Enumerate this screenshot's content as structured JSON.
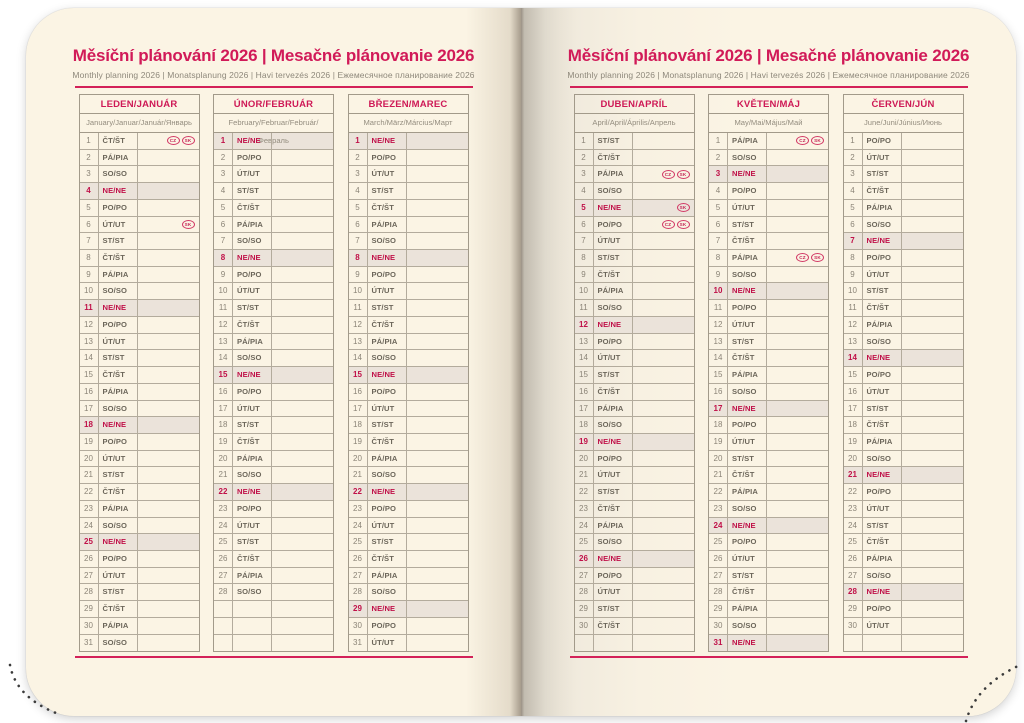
{
  "page_title": "Měsíční plánování 2026 | Mesačné plánovanie 2026",
  "page_subtitle": "Monthly planning 2026 | Monatsplanung 2026 | Havi tervezés 2026 | Ежемесячное планирование 2026",
  "colors": {
    "accent": "#ce1956",
    "title": "#d11a58",
    "rule": "#d32159",
    "sunday_text": "#c01048",
    "sunday_background": "#ebe3da",
    "paper": "#fbf4e4",
    "table_border": "#a29a8a"
  },
  "badge_labels": [
    "CZ",
    "SK"
  ],
  "rows_per_column": 31,
  "months": [
    {
      "title": "LEDEN/JANUÁR",
      "subtitle": "January/Januar/Január/Январь",
      "days": [
        {
          "d": 1,
          "w": "ČT/ŠT",
          "b": [
            "CZ",
            "SK"
          ]
        },
        {
          "d": 2,
          "w": "PÁ/PIA"
        },
        {
          "d": 3,
          "w": "SO/SO"
        },
        {
          "d": 4,
          "w": "NE/NE",
          "hl": true
        },
        {
          "d": 5,
          "w": "PO/PO"
        },
        {
          "d": 6,
          "w": "ÚT/UT",
          "b": [
            "SK"
          ]
        },
        {
          "d": 7,
          "w": "ST/ST"
        },
        {
          "d": 8,
          "w": "ČT/ŠT"
        },
        {
          "d": 9,
          "w": "PÁ/PIA"
        },
        {
          "d": 10,
          "w": "SO/SO"
        },
        {
          "d": 11,
          "w": "NE/NE",
          "hl": true
        },
        {
          "d": 12,
          "w": "PO/PO"
        },
        {
          "d": 13,
          "w": "ÚT/UT"
        },
        {
          "d": 14,
          "w": "ST/ST"
        },
        {
          "d": 15,
          "w": "ČT/ŠT"
        },
        {
          "d": 16,
          "w": "PÁ/PIA"
        },
        {
          "d": 17,
          "w": "SO/SO"
        },
        {
          "d": 18,
          "w": "NE/NE",
          "hl": true
        },
        {
          "d": 19,
          "w": "PO/PO"
        },
        {
          "d": 20,
          "w": "ÚT/UT"
        },
        {
          "d": 21,
          "w": "ST/ST"
        },
        {
          "d": 22,
          "w": "ČT/ŠT"
        },
        {
          "d": 23,
          "w": "PÁ/PIA"
        },
        {
          "d": 24,
          "w": "SO/SO"
        },
        {
          "d": 25,
          "w": "NE/NE",
          "hl": true
        },
        {
          "d": 26,
          "w": "PO/PO"
        },
        {
          "d": 27,
          "w": "ÚT/UT"
        },
        {
          "d": 28,
          "w": "ST/ST"
        },
        {
          "d": 29,
          "w": "ČT/ŠT"
        },
        {
          "d": 30,
          "w": "PÁ/PIA"
        },
        {
          "d": 31,
          "w": "SO/SO"
        }
      ]
    },
    {
      "title": "ÚNOR/FEBRUÁR",
      "subtitle": "February/Februar/Február/Февраль",
      "days": [
        {
          "d": 1,
          "w": "NE/NE",
          "hl": true
        },
        {
          "d": 2,
          "w": "PO/PO"
        },
        {
          "d": 3,
          "w": "ÚT/UT"
        },
        {
          "d": 4,
          "w": "ST/ST"
        },
        {
          "d": 5,
          "w": "ČT/ŠT"
        },
        {
          "d": 6,
          "w": "PÁ/PIA"
        },
        {
          "d": 7,
          "w": "SO/SO"
        },
        {
          "d": 8,
          "w": "NE/NE",
          "hl": true
        },
        {
          "d": 9,
          "w": "PO/PO"
        },
        {
          "d": 10,
          "w": "ÚT/UT"
        },
        {
          "d": 11,
          "w": "ST/ST"
        },
        {
          "d": 12,
          "w": "ČT/ŠT"
        },
        {
          "d": 13,
          "w": "PÁ/PIA"
        },
        {
          "d": 14,
          "w": "SO/SO"
        },
        {
          "d": 15,
          "w": "NE/NE",
          "hl": true
        },
        {
          "d": 16,
          "w": "PO/PO"
        },
        {
          "d": 17,
          "w": "ÚT/UT"
        },
        {
          "d": 18,
          "w": "ST/ST"
        },
        {
          "d": 19,
          "w": "ČT/ŠT"
        },
        {
          "d": 20,
          "w": "PÁ/PIA"
        },
        {
          "d": 21,
          "w": "SO/SO"
        },
        {
          "d": 22,
          "w": "NE/NE",
          "hl": true
        },
        {
          "d": 23,
          "w": "PO/PO"
        },
        {
          "d": 24,
          "w": "ÚT/UT"
        },
        {
          "d": 25,
          "w": "ST/ST"
        },
        {
          "d": 26,
          "w": "ČT/ŠT"
        },
        {
          "d": 27,
          "w": "PÁ/PIA"
        },
        {
          "d": 28,
          "w": "SO/SO"
        }
      ]
    },
    {
      "title": "BŘEZEN/MAREC",
      "subtitle": "March/März/Március/Март",
      "days": [
        {
          "d": 1,
          "w": "NE/NE",
          "hl": true
        },
        {
          "d": 2,
          "w": "PO/PO"
        },
        {
          "d": 3,
          "w": "ÚT/UT"
        },
        {
          "d": 4,
          "w": "ST/ST"
        },
        {
          "d": 5,
          "w": "ČT/ŠT"
        },
        {
          "d": 6,
          "w": "PÁ/PIA"
        },
        {
          "d": 7,
          "w": "SO/SO"
        },
        {
          "d": 8,
          "w": "NE/NE",
          "hl": true
        },
        {
          "d": 9,
          "w": "PO/PO"
        },
        {
          "d": 10,
          "w": "ÚT/UT"
        },
        {
          "d": 11,
          "w": "ST/ST"
        },
        {
          "d": 12,
          "w": "ČT/ŠT"
        },
        {
          "d": 13,
          "w": "PÁ/PIA"
        },
        {
          "d": 14,
          "w": "SO/SO"
        },
        {
          "d": 15,
          "w": "NE/NE",
          "hl": true
        },
        {
          "d": 16,
          "w": "PO/PO"
        },
        {
          "d": 17,
          "w": "ÚT/UT"
        },
        {
          "d": 18,
          "w": "ST/ST"
        },
        {
          "d": 19,
          "w": "ČT/ŠT"
        },
        {
          "d": 20,
          "w": "PÁ/PIA"
        },
        {
          "d": 21,
          "w": "SO/SO"
        },
        {
          "d": 22,
          "w": "NE/NE",
          "hl": true
        },
        {
          "d": 23,
          "w": "PO/PO"
        },
        {
          "d": 24,
          "w": "ÚT/UT"
        },
        {
          "d": 25,
          "w": "ST/ST"
        },
        {
          "d": 26,
          "w": "ČT/ŠT"
        },
        {
          "d": 27,
          "w": "PÁ/PIA"
        },
        {
          "d": 28,
          "w": "SO/SO"
        },
        {
          "d": 29,
          "w": "NE/NE",
          "hl": true
        },
        {
          "d": 30,
          "w": "PO/PO"
        },
        {
          "d": 31,
          "w": "ÚT/UT"
        }
      ]
    },
    {
      "title": "DUBEN/APRÍL",
      "subtitle": "April/April/Április/Апрель",
      "days": [
        {
          "d": 1,
          "w": "ST/ST"
        },
        {
          "d": 2,
          "w": "ČT/ŠT"
        },
        {
          "d": 3,
          "w": "PÁ/PIA",
          "b": [
            "CZ",
            "SK"
          ]
        },
        {
          "d": 4,
          "w": "SO/SO"
        },
        {
          "d": 5,
          "w": "NE/NE",
          "hl": true,
          "b": [
            "SK"
          ]
        },
        {
          "d": 6,
          "w": "PO/PO",
          "b": [
            "CZ",
            "SK"
          ]
        },
        {
          "d": 7,
          "w": "ÚT/UT"
        },
        {
          "d": 8,
          "w": "ST/ST"
        },
        {
          "d": 9,
          "w": "ČT/ŠT"
        },
        {
          "d": 10,
          "w": "PÁ/PIA"
        },
        {
          "d": 11,
          "w": "SO/SO"
        },
        {
          "d": 12,
          "w": "NE/NE",
          "hl": true
        },
        {
          "d": 13,
          "w": "PO/PO"
        },
        {
          "d": 14,
          "w": "ÚT/UT"
        },
        {
          "d": 15,
          "w": "ST/ST"
        },
        {
          "d": 16,
          "w": "ČT/ŠT"
        },
        {
          "d": 17,
          "w": "PÁ/PIA"
        },
        {
          "d": 18,
          "w": "SO/SO"
        },
        {
          "d": 19,
          "w": "NE/NE",
          "hl": true
        },
        {
          "d": 20,
          "w": "PO/PO"
        },
        {
          "d": 21,
          "w": "ÚT/UT"
        },
        {
          "d": 22,
          "w": "ST/ST"
        },
        {
          "d": 23,
          "w": "ČT/ŠT"
        },
        {
          "d": 24,
          "w": "PÁ/PIA"
        },
        {
          "d": 25,
          "w": "SO/SO"
        },
        {
          "d": 26,
          "w": "NE/NE",
          "hl": true
        },
        {
          "d": 27,
          "w": "PO/PO"
        },
        {
          "d": 28,
          "w": "ÚT/UT"
        },
        {
          "d": 29,
          "w": "ST/ST"
        },
        {
          "d": 30,
          "w": "ČT/ŠT"
        }
      ]
    },
    {
      "title": "KVĚTEN/MÁJ",
      "subtitle": "May/Mai/Május/Май",
      "days": [
        {
          "d": 1,
          "w": "PÁ/PIA",
          "b": [
            "CZ",
            "SK"
          ]
        },
        {
          "d": 2,
          "w": "SO/SO"
        },
        {
          "d": 3,
          "w": "NE/NE",
          "hl": true
        },
        {
          "d": 4,
          "w": "PO/PO"
        },
        {
          "d": 5,
          "w": "ÚT/UT"
        },
        {
          "d": 6,
          "w": "ST/ST"
        },
        {
          "d": 7,
          "w": "ČT/ŠT"
        },
        {
          "d": 8,
          "w": "PÁ/PIA",
          "b": [
            "CZ",
            "SK"
          ]
        },
        {
          "d": 9,
          "w": "SO/SO"
        },
        {
          "d": 10,
          "w": "NE/NE",
          "hl": true
        },
        {
          "d": 11,
          "w": "PO/PO"
        },
        {
          "d": 12,
          "w": "ÚT/UT"
        },
        {
          "d": 13,
          "w": "ST/ST"
        },
        {
          "d": 14,
          "w": "ČT/ŠT"
        },
        {
          "d": 15,
          "w": "PÁ/PIA"
        },
        {
          "d": 16,
          "w": "SO/SO"
        },
        {
          "d": 17,
          "w": "NE/NE",
          "hl": true
        },
        {
          "d": 18,
          "w": "PO/PO"
        },
        {
          "d": 19,
          "w": "ÚT/UT"
        },
        {
          "d": 20,
          "w": "ST/ST"
        },
        {
          "d": 21,
          "w": "ČT/ŠT"
        },
        {
          "d": 22,
          "w": "PÁ/PIA"
        },
        {
          "d": 23,
          "w": "SO/SO"
        },
        {
          "d": 24,
          "w": "NE/NE",
          "hl": true
        },
        {
          "d": 25,
          "w": "PO/PO"
        },
        {
          "d": 26,
          "w": "ÚT/UT"
        },
        {
          "d": 27,
          "w": "ST/ST"
        },
        {
          "d": 28,
          "w": "ČT/ŠT"
        },
        {
          "d": 29,
          "w": "PÁ/PIA"
        },
        {
          "d": 30,
          "w": "SO/SO"
        },
        {
          "d": 31,
          "w": "NE/NE",
          "hl": true
        }
      ]
    },
    {
      "title": "ČERVEN/JÚN",
      "subtitle": "June/Juni/Június/Июнь",
      "days": [
        {
          "d": 1,
          "w": "PO/PO"
        },
        {
          "d": 2,
          "w": "ÚT/UT"
        },
        {
          "d": 3,
          "w": "ST/ST"
        },
        {
          "d": 4,
          "w": "ČT/ŠT"
        },
        {
          "d": 5,
          "w": "PÁ/PIA"
        },
        {
          "d": 6,
          "w": "SO/SO"
        },
        {
          "d": 7,
          "w": "NE/NE",
          "hl": true
        },
        {
          "d": 8,
          "w": "PO/PO"
        },
        {
          "d": 9,
          "w": "ÚT/UT"
        },
        {
          "d": 10,
          "w": "ST/ST"
        },
        {
          "d": 11,
          "w": "ČT/ŠT"
        },
        {
          "d": 12,
          "w": "PÁ/PIA"
        },
        {
          "d": 13,
          "w": "SO/SO"
        },
        {
          "d": 14,
          "w": "NE/NE",
          "hl": true
        },
        {
          "d": 15,
          "w": "PO/PO"
        },
        {
          "d": 16,
          "w": "ÚT/UT"
        },
        {
          "d": 17,
          "w": "ST/ST"
        },
        {
          "d": 18,
          "w": "ČT/ŠT"
        },
        {
          "d": 19,
          "w": "PÁ/PIA"
        },
        {
          "d": 20,
          "w": "SO/SO"
        },
        {
          "d": 21,
          "w": "NE/NE",
          "hl": true
        },
        {
          "d": 22,
          "w": "PO/PO"
        },
        {
          "d": 23,
          "w": "ÚT/UT"
        },
        {
          "d": 24,
          "w": "ST/ST"
        },
        {
          "d": 25,
          "w": "ČT/ŠT"
        },
        {
          "d": 26,
          "w": "PÁ/PIA"
        },
        {
          "d": 27,
          "w": "SO/SO"
        },
        {
          "d": 28,
          "w": "NE/NE",
          "hl": true
        },
        {
          "d": 29,
          "w": "PO/PO"
        },
        {
          "d": 30,
          "w": "ÚT/UT"
        }
      ]
    }
  ]
}
